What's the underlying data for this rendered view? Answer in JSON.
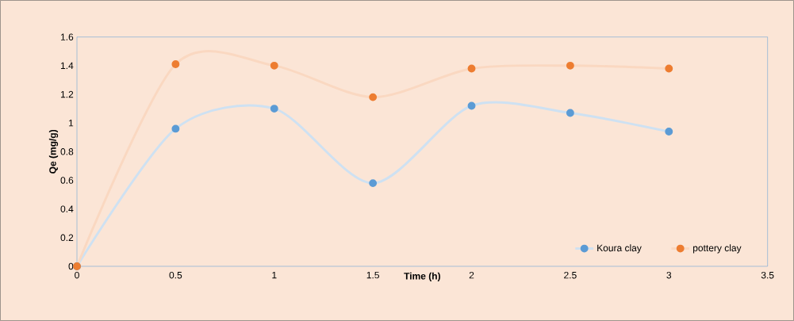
{
  "chart_data": {
    "type": "line",
    "xlabel": "Time (h)",
    "ylabel": "Qe (mg/g)",
    "x": [
      0,
      0.5,
      1,
      1.5,
      2,
      2.5,
      3
    ],
    "series": [
      {
        "name": "Koura clay",
        "color": "#5b9bd5",
        "values": [
          0,
          0.96,
          1.1,
          0.58,
          1.12,
          1.07,
          0.94
        ]
      },
      {
        "name": "pottery clay",
        "color": "#ed7d31",
        "values": [
          0,
          1.41,
          1.4,
          1.18,
          1.38,
          1.4,
          1.38
        ]
      }
    ],
    "xlim": [
      0,
      3.5
    ],
    "ylim": [
      0,
      1.6
    ],
    "xticks": [
      0,
      0.5,
      1,
      1.5,
      2,
      2.5,
      3,
      3.5
    ],
    "yticks": [
      0,
      0.2,
      0.4,
      0.6,
      0.8,
      1,
      1.2,
      1.4,
      1.6
    ],
    "grid": false,
    "legend": "bottom right",
    "marker": "circle",
    "line_style": "solid"
  }
}
